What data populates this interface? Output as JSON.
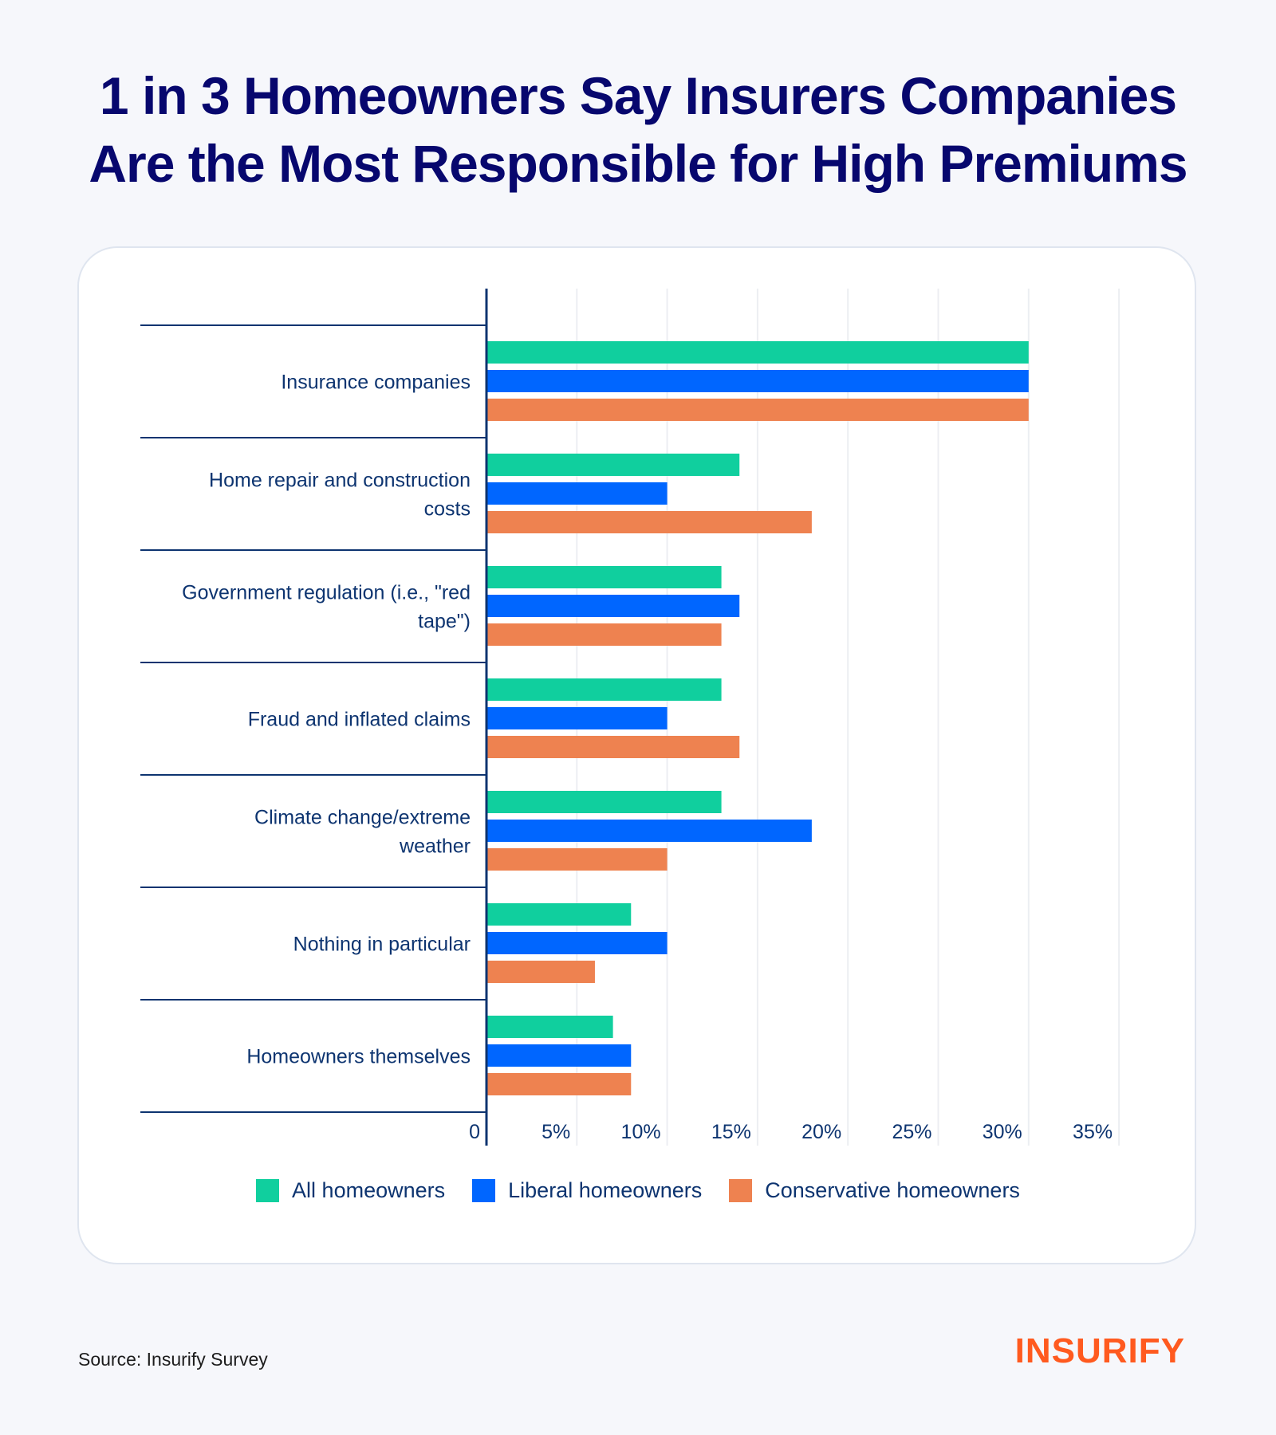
{
  "title": {
    "line1": "1 in 3 Homeowners Say Insurers Companies",
    "line2": "Are the Most Responsible for High Premiums"
  },
  "footer": {
    "source": "Source: Insurify Survey",
    "logo": "INSURIFY"
  },
  "colors": {
    "all": "#10cf9e",
    "liberal": "#0066ff",
    "conservative": "#ee8250",
    "text": "#0d3470",
    "title": "#07076e",
    "logo": "#ff5a1f"
  },
  "chart_data": {
    "type": "bar",
    "orientation": "horizontal",
    "title": "1 in 3 Homeowners Say Insurers Companies Are the Most Responsible for High Premiums",
    "xlabel": "",
    "ylabel": "",
    "xlim": [
      0,
      35
    ],
    "grid": true,
    "legend_position": "bottom",
    "x_ticks": [
      "0",
      "5%",
      "10%",
      "15%",
      "20%",
      "25%",
      "30%",
      "35%"
    ],
    "x_tick_values": [
      0,
      5,
      10,
      15,
      20,
      25,
      30,
      35
    ],
    "categories": [
      [
        "Insurance companies"
      ],
      [
        "Home repair and construction",
        "costs"
      ],
      [
        "Government regulation (i.e., \"red",
        "tape\")"
      ],
      [
        "Fraud and inflated claims"
      ],
      [
        "Climate change/extreme",
        "weather"
      ],
      [
        "Nothing in particular"
      ],
      [
        "Homeowners themselves"
      ]
    ],
    "series": [
      {
        "name": "All homeowners",
        "color": "#10cf9e",
        "values": [
          30,
          14,
          13,
          13,
          13,
          8,
          7
        ]
      },
      {
        "name": "Liberal homeowners",
        "color": "#0066ff",
        "values": [
          30,
          10,
          14,
          10,
          18,
          10,
          8
        ]
      },
      {
        "name": "Conservative homeowners",
        "color": "#ee8250",
        "values": [
          30,
          18,
          13,
          14,
          10,
          6,
          8
        ]
      }
    ]
  }
}
